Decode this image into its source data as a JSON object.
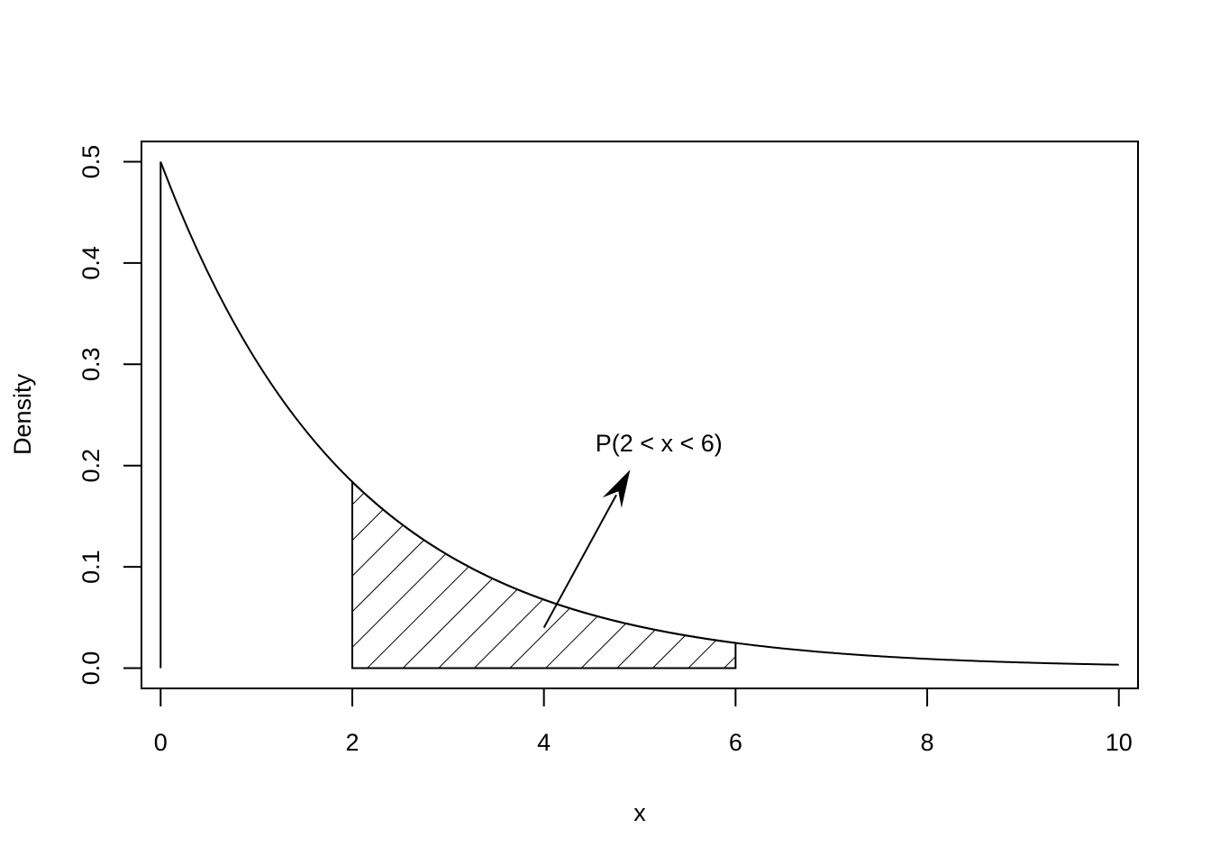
{
  "chart_data": {
    "type": "line",
    "title": "",
    "xlabel": "x",
    "ylabel": "Density",
    "xlim": [
      -0.2,
      10.2
    ],
    "ylim": [
      -0.02,
      0.52
    ],
    "x_ticks": [
      0,
      2,
      4,
      6,
      8,
      10
    ],
    "x_tick_labels": [
      "0",
      "2",
      "4",
      "6",
      "8",
      "10"
    ],
    "y_ticks": [
      0.0,
      0.1,
      0.2,
      0.3,
      0.4,
      0.5
    ],
    "y_tick_labels": [
      "0.0",
      "0.1",
      "0.2",
      "0.3",
      "0.4",
      "0.5"
    ],
    "grid": false,
    "series": [
      {
        "distribution": "exponential",
        "rate": 0.5,
        "x_range": [
          0,
          10
        ],
        "x": [
          0,
          0.5,
          1,
          1.5,
          2,
          2.5,
          3,
          3.5,
          4,
          4.5,
          5,
          5.5,
          6,
          6.5,
          7,
          7.5,
          8,
          8.5,
          9,
          9.5,
          10
        ],
        "y": [
          0.5,
          0.389,
          0.303,
          0.236,
          0.184,
          0.143,
          0.112,
          0.087,
          0.068,
          0.053,
          0.041,
          0.032,
          0.025,
          0.019,
          0.015,
          0.012,
          0.009,
          0.007,
          0.006,
          0.004,
          0.003
        ]
      }
    ],
    "shaded_region": {
      "from": 2,
      "to": 6,
      "fill": "hatched"
    },
    "annotation": {
      "text": "P(2 < x < 6)",
      "x": 5.2,
      "y": 0.222,
      "arrow_from": [
        4.0,
        0.04
      ],
      "arrow_to": [
        4.9,
        0.196
      ]
    }
  }
}
